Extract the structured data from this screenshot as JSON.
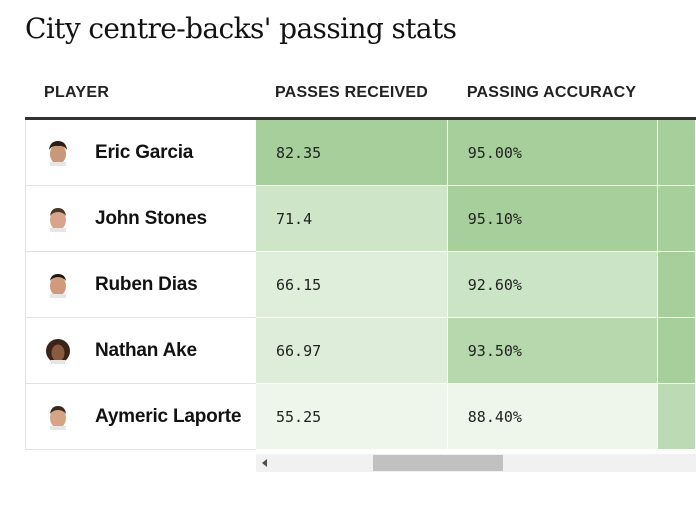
{
  "title": "City centre-backs' passing stats",
  "table": {
    "headers": [
      "PLAYER",
      "PASSES RECEIVED",
      "PASSING ACCURACY"
    ],
    "rows": [
      {
        "player": "Eric Garcia",
        "passes_received": "82.35",
        "passing_accuracy": "95.00%"
      },
      {
        "player": "John Stones",
        "passes_received": "71.4",
        "passing_accuracy": "95.10%"
      },
      {
        "player": "Ruben Dias",
        "passes_received": "66.15",
        "passing_accuracy": "92.60%"
      },
      {
        "player": "Nathan Ake",
        "passes_received": "66.97",
        "passing_accuracy": "93.50%"
      },
      {
        "player": "Aymeric Laporte",
        "passes_received": "55.25",
        "passing_accuracy": "88.40%"
      }
    ]
  },
  "colors": {
    "passes_received": [
      "#a7cf9b",
      "#cee5c8",
      "#deeeda",
      "#ddedd9",
      "#eef6ec"
    ],
    "passing_accuracy": [
      "#a7cf9b",
      "#a7cf9b",
      "#cce4c6",
      "#b6d8ac",
      "#eef6ec"
    ],
    "offscreen_column": [
      "#a7cf9b",
      "#a7cf9b",
      "#a7cf9b",
      "#a7cf9b",
      "#bcdab3"
    ]
  },
  "icons": {
    "avatars": [
      "player-photo-icon",
      "player-photo-icon",
      "player-photo-icon",
      "player-photo-icon",
      "player-photo-icon"
    ]
  }
}
